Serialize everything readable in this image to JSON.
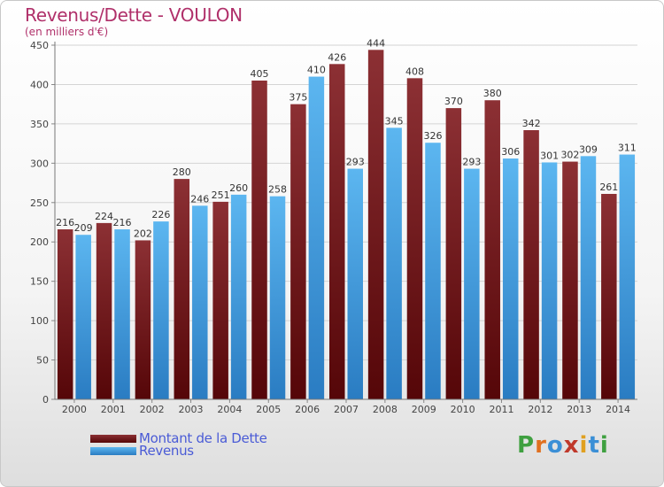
{
  "title": "Revenus/Dette - VOULON",
  "subtitle": "(en milliers d'€)",
  "legend": [
    {
      "label": "Montant de la Dette",
      "color": "#6e1418"
    },
    {
      "label": "Revenus",
      "color": "#4aa3e6"
    }
  ],
  "logo": {
    "text": "Proxiti",
    "letters": [
      "P",
      "r",
      "o",
      "x",
      "i",
      "t",
      "i"
    ],
    "colors": [
      "#3fa040",
      "#e07020",
      "#3b8fd6",
      "#c0392b",
      "#e0a020",
      "#3b8fd6",
      "#3fa040"
    ]
  },
  "colors": {
    "debt_light": "#8c3034",
    "debt_dark": "#550608",
    "revenue_light": "#5cb6f0",
    "revenue_dark": "#2a7cc2"
  },
  "chart_data": {
    "type": "bar",
    "title": "Revenus/Dette - VOULON",
    "subtitle": "(en milliers d'€)",
    "xlabel": "",
    "ylabel": "",
    "ylim": [
      0,
      450
    ],
    "yticks": [
      0,
      50,
      100,
      150,
      200,
      250,
      300,
      350,
      400,
      450
    ],
    "grid": true,
    "legend_position": "bottom-left",
    "categories": [
      "2000",
      "2001",
      "2002",
      "2003",
      "2004",
      "2005",
      "2006",
      "2007",
      "2008",
      "2009",
      "2010",
      "2011",
      "2012",
      "2013",
      "2014"
    ],
    "series": [
      {
        "name": "Montant de la Dette",
        "values": [
          216,
          224,
          202,
          280,
          251,
          405,
          375,
          426,
          444,
          408,
          370,
          380,
          342,
          302,
          261
        ]
      },
      {
        "name": "Revenus",
        "values": [
          209,
          216,
          226,
          246,
          260,
          258,
          410,
          293,
          345,
          326,
          293,
          306,
          301,
          309,
          311
        ]
      }
    ]
  }
}
